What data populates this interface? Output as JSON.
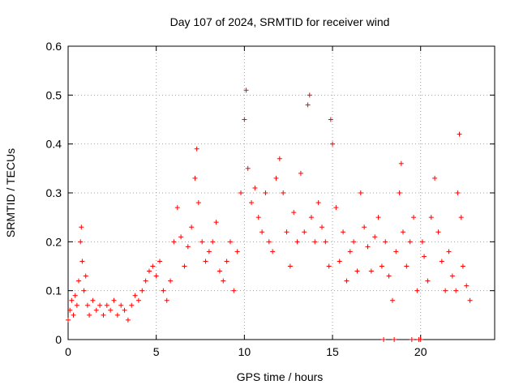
{
  "chart_data": {
    "type": "scatter",
    "title": "Day 107 of 2024, SRMTID for receiver wind",
    "xlabel": "GPS time / hours",
    "ylabel": "SRMTID / TECUs",
    "xlim": [
      0,
      24.2
    ],
    "ylim": [
      0,
      0.6
    ],
    "xticks": [
      0,
      5,
      10,
      15,
      20
    ],
    "xtick_labels": [
      "0",
      "5",
      "10",
      "15",
      "20"
    ],
    "yticks": [
      0,
      0.1,
      0.2,
      0.3,
      0.4,
      0.5,
      0.6
    ],
    "ytick_labels": [
      "0",
      "0.1",
      "0.2",
      "0.3",
      "0.4",
      "0.5",
      "0.6"
    ],
    "grid": true,
    "marker": "+",
    "color": "#ff0000",
    "series": [
      {
        "name": "SRMTID",
        "points": [
          [
            0.0,
            0.04
          ],
          [
            0.1,
            0.06
          ],
          [
            0.2,
            0.08
          ],
          [
            0.3,
            0.05
          ],
          [
            0.4,
            0.09
          ],
          [
            0.5,
            0.07
          ],
          [
            0.6,
            0.12
          ],
          [
            0.7,
            0.2
          ],
          [
            0.75,
            0.23
          ],
          [
            0.8,
            0.16
          ],
          [
            0.9,
            0.1
          ],
          [
            1.0,
            0.13
          ],
          [
            1.1,
            0.07
          ],
          [
            1.2,
            0.05
          ],
          [
            1.4,
            0.08
          ],
          [
            1.6,
            0.06
          ],
          [
            1.8,
            0.07
          ],
          [
            2.0,
            0.05
          ],
          [
            2.2,
            0.07
          ],
          [
            2.4,
            0.06
          ],
          [
            2.6,
            0.08
          ],
          [
            2.8,
            0.05
          ],
          [
            3.0,
            0.07
          ],
          [
            3.2,
            0.06
          ],
          [
            3.4,
            0.04
          ],
          [
            3.6,
            0.07
          ],
          [
            3.8,
            0.09
          ],
          [
            4.0,
            0.08
          ],
          [
            4.2,
            0.1
          ],
          [
            4.4,
            0.12
          ],
          [
            4.6,
            0.14
          ],
          [
            4.8,
            0.15
          ],
          [
            5.0,
            0.13
          ],
          [
            5.2,
            0.16
          ],
          [
            5.4,
            0.1
          ],
          [
            5.6,
            0.08
          ],
          [
            5.8,
            0.12
          ],
          [
            6.0,
            0.2
          ],
          [
            6.2,
            0.27
          ],
          [
            6.4,
            0.21
          ],
          [
            6.6,
            0.15
          ],
          [
            6.8,
            0.19
          ],
          [
            7.0,
            0.23
          ],
          [
            7.2,
            0.33
          ],
          [
            7.3,
            0.39
          ],
          [
            7.4,
            0.28
          ],
          [
            7.6,
            0.2
          ],
          [
            7.8,
            0.16
          ],
          [
            8.0,
            0.18
          ],
          [
            8.2,
            0.2
          ],
          [
            8.4,
            0.24
          ],
          [
            8.6,
            0.14
          ],
          [
            8.8,
            0.12
          ],
          [
            9.0,
            0.16
          ],
          [
            9.2,
            0.2
          ],
          [
            9.4,
            0.1
          ],
          [
            9.6,
            0.18
          ],
          [
            9.8,
            0.3
          ],
          [
            10.0,
            0.45
          ],
          [
            10.1,
            0.51
          ],
          [
            10.2,
            0.35
          ],
          [
            10.4,
            0.28
          ],
          [
            10.6,
            0.31
          ],
          [
            10.8,
            0.25
          ],
          [
            11.0,
            0.22
          ],
          [
            11.2,
            0.3
          ],
          [
            11.4,
            0.2
          ],
          [
            11.6,
            0.18
          ],
          [
            11.8,
            0.33
          ],
          [
            12.0,
            0.37
          ],
          [
            12.2,
            0.3
          ],
          [
            12.4,
            0.22
          ],
          [
            12.6,
            0.15
          ],
          [
            12.8,
            0.26
          ],
          [
            13.0,
            0.2
          ],
          [
            13.2,
            0.34
          ],
          [
            13.4,
            0.22
          ],
          [
            13.6,
            0.48
          ],
          [
            13.7,
            0.5
          ],
          [
            13.8,
            0.25
          ],
          [
            14.0,
            0.2
          ],
          [
            14.2,
            0.28
          ],
          [
            14.4,
            0.23
          ],
          [
            14.6,
            0.2
          ],
          [
            14.8,
            0.15
          ],
          [
            14.9,
            0.45
          ],
          [
            15.0,
            0.4
          ],
          [
            15.2,
            0.27
          ],
          [
            15.4,
            0.16
          ],
          [
            15.6,
            0.22
          ],
          [
            15.8,
            0.12
          ],
          [
            16.0,
            0.18
          ],
          [
            16.2,
            0.2
          ],
          [
            16.4,
            0.14
          ],
          [
            16.6,
            0.3
          ],
          [
            16.8,
            0.23
          ],
          [
            17.0,
            0.19
          ],
          [
            17.2,
            0.14
          ],
          [
            17.4,
            0.21
          ],
          [
            17.6,
            0.25
          ],
          [
            17.8,
            0.15
          ],
          [
            17.9,
            0.0
          ],
          [
            18.0,
            0.2
          ],
          [
            18.2,
            0.13
          ],
          [
            18.4,
            0.08
          ],
          [
            18.5,
            0.0
          ],
          [
            18.6,
            0.18
          ],
          [
            18.8,
            0.3
          ],
          [
            18.9,
            0.36
          ],
          [
            19.0,
            0.22
          ],
          [
            19.2,
            0.15
          ],
          [
            19.4,
            0.2
          ],
          [
            19.5,
            0.0
          ],
          [
            19.6,
            0.25
          ],
          [
            19.8,
            0.1
          ],
          [
            19.9,
            0.0
          ],
          [
            20.0,
            0.0
          ],
          [
            20.1,
            0.2
          ],
          [
            20.2,
            0.17
          ],
          [
            20.4,
            0.12
          ],
          [
            20.6,
            0.25
          ],
          [
            20.8,
            0.33
          ],
          [
            21.0,
            0.22
          ],
          [
            21.2,
            0.16
          ],
          [
            21.4,
            0.1
          ],
          [
            21.6,
            0.18
          ],
          [
            21.8,
            0.13
          ],
          [
            22.0,
            0.1
          ],
          [
            22.1,
            0.3
          ],
          [
            22.2,
            0.42
          ],
          [
            22.3,
            0.25
          ],
          [
            22.4,
            0.15
          ],
          [
            22.6,
            0.11
          ],
          [
            22.8,
            0.08
          ]
        ]
      }
    ]
  }
}
